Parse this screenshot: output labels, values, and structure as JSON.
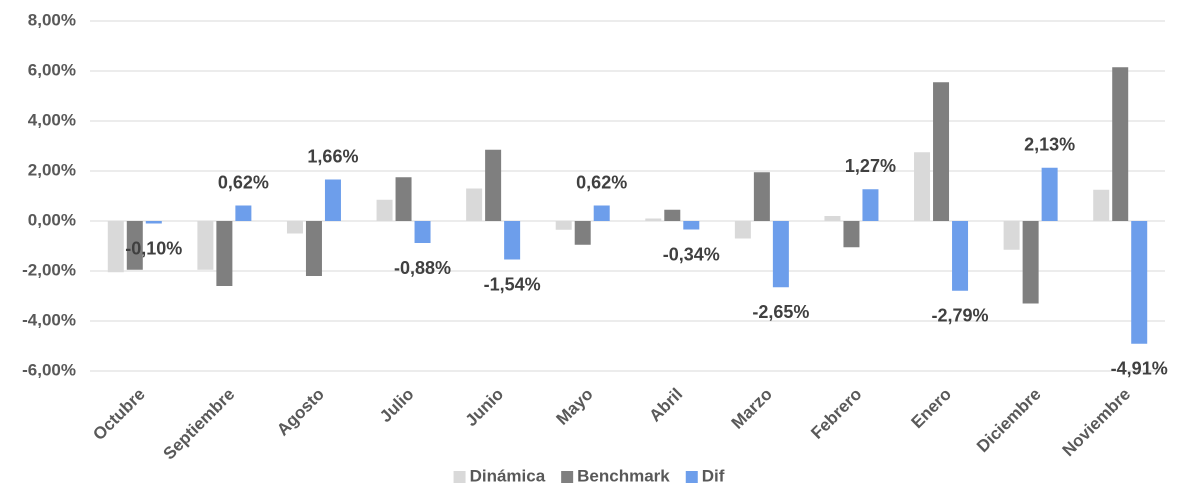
{
  "chart_data": {
    "type": "bar",
    "categories": [
      "Octubre",
      "Septiembre",
      "Agosto",
      "Julio",
      "Junio",
      "Mayo",
      "Abril",
      "Marzo",
      "Febrero",
      "Enero",
      "Diciembre",
      "Noviembre"
    ],
    "series": [
      {
        "name": "Dinámica",
        "color": "#d9d9d9",
        "values": [
          -2.05,
          -1.95,
          -0.5,
          0.85,
          1.3,
          -0.35,
          0.1,
          -0.7,
          0.2,
          2.75,
          -1.15,
          1.25
        ]
      },
      {
        "name": "Benchmark",
        "color": "#7f7f7f",
        "values": [
          -1.95,
          -2.6,
          -2.2,
          1.75,
          2.85,
          -0.95,
          0.45,
          1.95,
          -1.05,
          5.55,
          -3.3,
          6.15
        ]
      },
      {
        "name": "Dif",
        "color": "#6d9eeb",
        "values": [
          -0.1,
          0.62,
          1.66,
          -0.88,
          -1.54,
          0.62,
          -0.34,
          -2.65,
          1.27,
          -2.79,
          2.13,
          -4.91
        ],
        "value_labels": [
          "-0,10%",
          "0,62%",
          "1,66%",
          "-0,88%",
          "-1,54%",
          "0,62%",
          "-0,34%",
          "-2,65%",
          "1,27%",
          "-2,79%",
          "2,13%",
          "-4,91%"
        ]
      }
    ],
    "ylim": [
      -6,
      8
    ],
    "yticks": [
      {
        "value": -6,
        "label": "-6,00%"
      },
      {
        "value": -4,
        "label": "-4,00%"
      },
      {
        "value": -2,
        "label": "-2,00%"
      },
      {
        "value": 0,
        "label": "0,00%"
      },
      {
        "value": 2,
        "label": "2,00%"
      },
      {
        "value": 4,
        "label": "4,00%"
      },
      {
        "value": 6,
        "label": "6,00%"
      },
      {
        "value": 8,
        "label": "8,00%"
      }
    ],
    "grid": true,
    "legend": "bottom"
  }
}
